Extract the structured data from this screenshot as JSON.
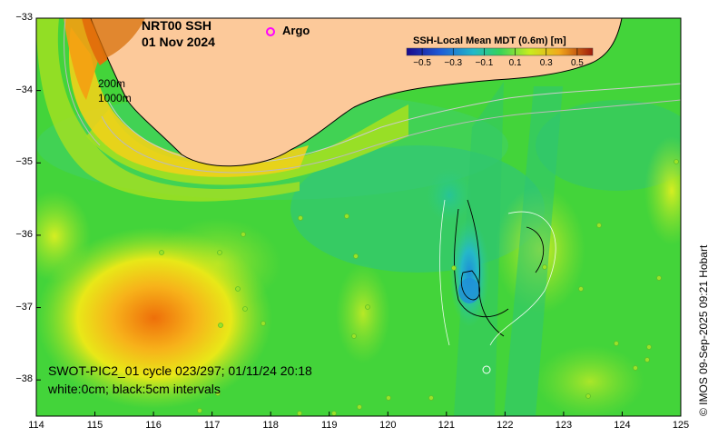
{
  "title": {
    "product": "NRT00 SSH",
    "date": "01 Nov 2024"
  },
  "legend": {
    "argo_label": "Argo",
    "argo_color": "#ff00ff"
  },
  "colorbar": {
    "label": "SSH-Local Mean MDT (0.6m) [m]",
    "ticks": [
      "−0.5",
      "−0.3",
      "−0.1",
      "0.1",
      "0.3",
      "0.5"
    ],
    "range": [
      -0.6,
      0.6
    ]
  },
  "isobaths": {
    "shallow": "200m",
    "deep": "1000m"
  },
  "swot": {
    "caption": "SWOT-PIC2_01 cycle 023/297; 01/11/24 20:18",
    "contours": "white:0cm; black:5cm intervals"
  },
  "axes": {
    "x_ticks": [
      "114",
      "115",
      "116",
      "117",
      "118",
      "119",
      "120",
      "121",
      "122",
      "123",
      "124",
      "125"
    ],
    "y_ticks": [
      "−33",
      "−34",
      "−35",
      "−36",
      "−37",
      "−38"
    ],
    "lon_range": [
      114,
      125
    ],
    "lat_range": [
      -38.5,
      -33
    ]
  },
  "credit": "© IMOS 09-Sep-2025 09:21 Hobart",
  "colors": {
    "land": "#fcc99a",
    "ocean_base": "#43d43a",
    "warm_core": "#f0900a",
    "cool_core": "#2aaed0"
  }
}
